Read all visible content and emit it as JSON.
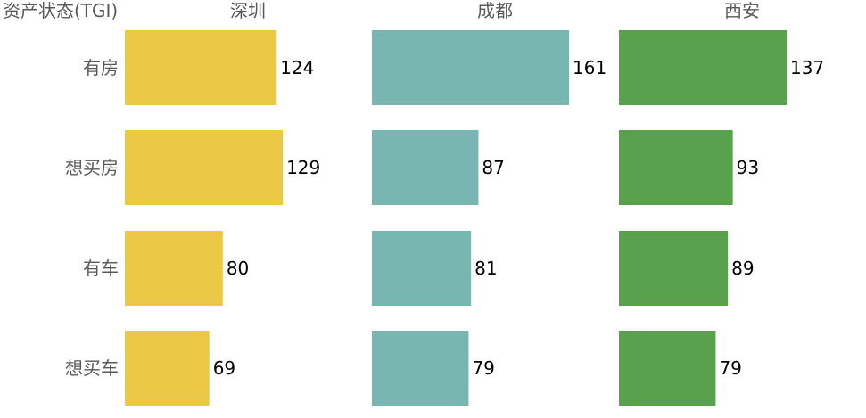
{
  "chart_data": {
    "type": "bar",
    "orientation": "horizontal",
    "layout": "small-multiples",
    "category_header": "资产状态(TGI)",
    "categories": [
      "有房",
      "想买房",
      "有车",
      "想买车"
    ],
    "series": [
      {
        "name": "深圳",
        "values": [
          124,
          129,
          80,
          69
        ],
        "color": "#EBC846"
      },
      {
        "name": "成都",
        "values": [
          161,
          87,
          81,
          79
        ],
        "color": "#77B6B1"
      },
      {
        "name": "西安",
        "values": [
          137,
          93,
          89,
          79
        ],
        "color": "#5AA14E"
      }
    ],
    "xlim": [
      0,
      161
    ],
    "grid": false,
    "legend": "none"
  }
}
